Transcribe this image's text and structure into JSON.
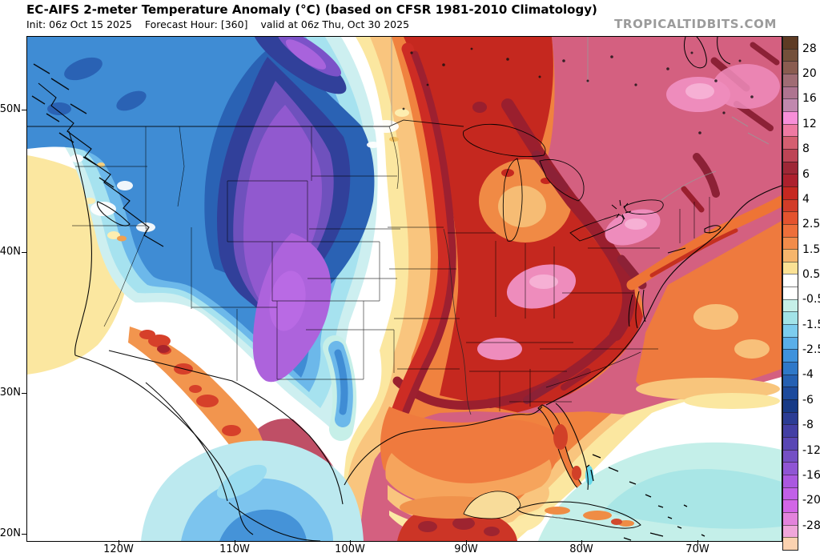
{
  "header": {
    "title": "EC-AIFS 2-meter Temperature Anomaly (°C) (based on CFSR 1981-2010 Climatology)",
    "init_text": "Init: 06z Oct 15 2025",
    "forecast_hour_text": "Forecast Hour: [360]",
    "valid_text": "valid at 06z Thu, Oct 30 2025",
    "watermark": "TROPICALTIDBITS.COM"
  },
  "map": {
    "lat_labels": [
      "50N",
      "40N",
      "30N",
      "20N"
    ],
    "lon_labels": [
      "120W",
      "110W",
      "100W",
      "90W",
      "80W",
      "70W"
    ]
  },
  "colorbar": {
    "unit": "°C",
    "labels": [
      "28",
      "20",
      "16",
      "12",
      "8",
      "6",
      "4",
      "2.5",
      "1.5",
      "0.5",
      "-0.5",
      "-1.5",
      "-2.5",
      "-4",
      "-6",
      "-8",
      "-12",
      "-16",
      "-20",
      "-28"
    ],
    "colors": [
      "#5e3b24",
      "#74503a",
      "#8a5c50",
      "#a06c74",
      "#ae7490",
      "#c088ae",
      "#f78fd8",
      "#ee7aa2",
      "#d45f70",
      "#bd4455",
      "#9e2736",
      "#ad202d",
      "#c62820",
      "#d23c28",
      "#e4532e",
      "#ee6f3a",
      "#f28c4a",
      "#f6b56c",
      "#fbe194",
      "#ffffff",
      "#ffffff",
      "#c6efe8",
      "#a2e3e8",
      "#7cccee",
      "#5aaee8",
      "#3f92dc",
      "#2f78c8",
      "#2560b2",
      "#1c4a9c",
      "#173a86",
      "#2b3c94",
      "#433fa4",
      "#5946b4",
      "#7450c4",
      "#8f55d4",
      "#aa58e0",
      "#c160e8",
      "#d266e6",
      "#e383dc",
      "#f0a6da",
      "#fbd2b0"
    ]
  }
}
